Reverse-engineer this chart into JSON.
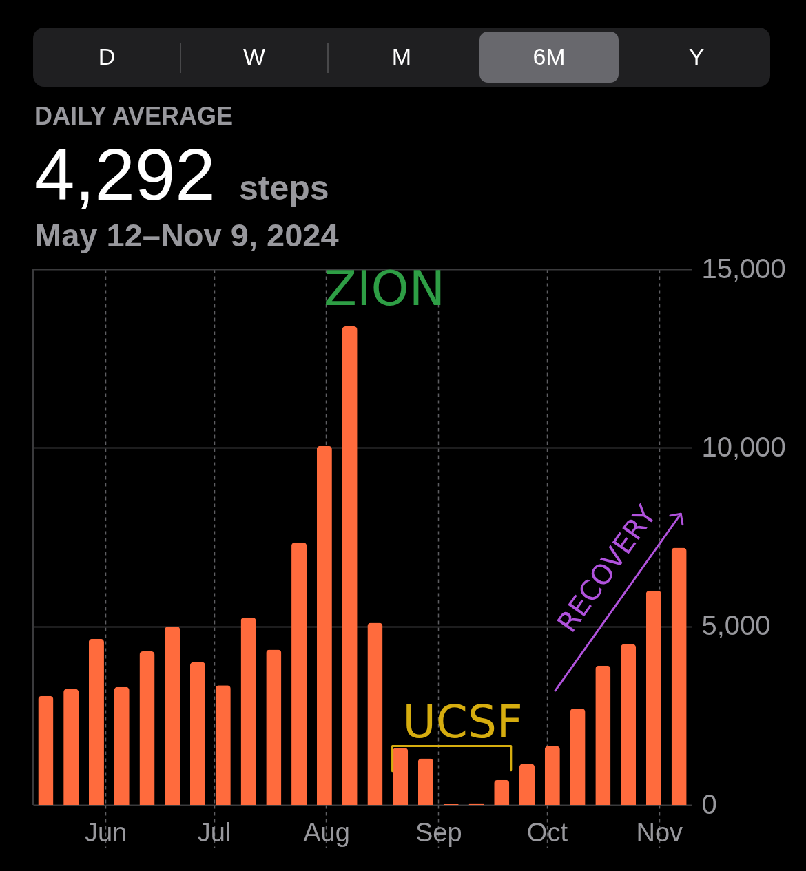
{
  "chart_data": {
    "type": "bar",
    "title": "DAILY AVERAGE",
    "subtitle": "May 12–Nov 9, 2024",
    "annotations": [
      "D",
      "W",
      "M",
      "6M",
      "Y",
      "4,292",
      "steps",
      "ZION"
    ],
    "x": [
      "2024-05-15T12:00",
      "2024-05-22T12:00",
      "2024-05-29T12:00",
      "2024-06-05T12:00",
      "2024-06-12T12:00",
      "2024-06-19T12:00",
      "2024-06-26T12:00",
      "2024-07-03T12:00",
      "2024-07-10T12:00",
      "2024-07-17T12:00",
      "2024-07-24T12:00",
      "2024-07-31T12:00",
      "2024-08-07T12:00",
      "2024-08-14T12:00",
      "2024-08-21T12:00",
      "2024-08-28T12:00",
      "2024-09-04T12:00",
      "2024-09-11T12:00",
      "2024-09-18T12:00",
      "2024-09-25T12:00",
      "2024-10-02T12:00",
      "2024-10-09T12:00",
      "2024-10-16T12:00",
      "2024-10-23T12:00",
      "2024-10-30T12:00",
      "2024-11-06T12:00"
    ],
    "xlim": [
      "2024-05-12",
      "2024-11-10"
    ],
    "xticks": [
      {
        "value": "2024-06-01",
        "label": "Jun"
      },
      {
        "value": "2024-07-01",
        "label": "Jul"
      },
      {
        "value": "2024-08-01",
        "label": "Aug"
      },
      {
        "value": "2024-09-01",
        "label": "Sep"
      },
      {
        "value": "2024-10-01",
        "label": "Oct"
      },
      {
        "value": "2024-11-01",
        "label": "Nov"
      }
    ],
    "ylim": [
      0,
      15000
    ],
    "yticks": [
      0,
      {
        "value": 5000,
        "label": "5,000"
      },
      {
        "value": 10000,
        "label": "10,000"
      },
      {
        "value": 15000,
        "label": "15,000"
      }
    ],
    "grid": true,
    "series": [
      {
        "color": "#ff6b3d",
        "values": [
          3050,
          3250,
          4650,
          3300,
          4300,
          5000,
          4000,
          3350,
          5250,
          4350,
          7350,
          10050,
          13400,
          5100,
          1600,
          1300,
          20,
          50,
          700,
          1150,
          1650,
          2700,
          3900,
          4500,
          6000,
          7200
        ]
      },
      {
        "type": "line",
        "name": "UCSF",
        "color": "#d6ad0f",
        "x": [
          "2024-08-19T07:00",
          "2024-08-19T07:00",
          "2024-09-21T02:00",
          "2024-09-21T02:00"
        ],
        "values": [
          950,
          1650,
          1650,
          970
        ]
      },
      {
        "type": "line",
        "name": "RECOVERY",
        "color": "#b052dc",
        "x": [
          "2024-10-03T07:00",
          "2024-11-07"
        ],
        "values": [
          3200,
          8150
        ]
      }
    ]
  }
}
